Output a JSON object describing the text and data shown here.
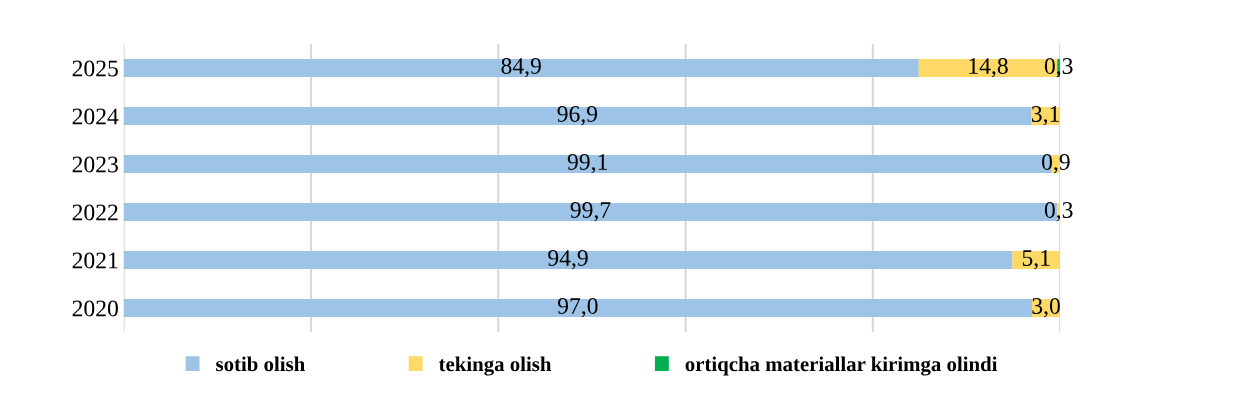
{
  "chart_data": {
    "type": "bar",
    "orientation": "horizontal",
    "stacked": true,
    "categories": [
      "2025",
      "2024",
      "2023",
      "2022",
      "2021",
      "2020"
    ],
    "series": [
      {
        "name": "sotib olish",
        "color": "#9dc3e6",
        "values": [
          84.9,
          96.9,
          99.1,
          99.7,
          94.9,
          97.0
        ],
        "value_labels": [
          "84,9",
          "96,9",
          "99,1",
          "99,7",
          "94,9",
          "97,0"
        ]
      },
      {
        "name": "tekinga olish",
        "color": "#ffd966",
        "values": [
          14.8,
          3.1,
          0.9,
          0.3,
          5.1,
          3.0
        ],
        "value_labels": [
          "14,8",
          "3,1",
          "0,9",
          "0,3",
          "5,1",
          "3,0"
        ]
      },
      {
        "name": "ortiqcha materiallar kirimga olindi",
        "color": "#00b050",
        "values": [
          0.3,
          null,
          null,
          null,
          null,
          null
        ],
        "value_labels": [
          "0,3",
          null,
          null,
          null,
          null,
          null
        ]
      }
    ],
    "xlim": [
      0,
      100
    ],
    "xticks": [
      {
        "value": 0,
        "label": null
      },
      {
        "value": 20,
        "label": null
      },
      {
        "value": 40,
        "label": null
      },
      {
        "value": 60,
        "label": null
      },
      {
        "value": 80,
        "label": null
      },
      {
        "value": 100,
        "label": null
      }
    ],
    "tick_labels": "y",
    "grid": "x",
    "legend": "bottom"
  }
}
